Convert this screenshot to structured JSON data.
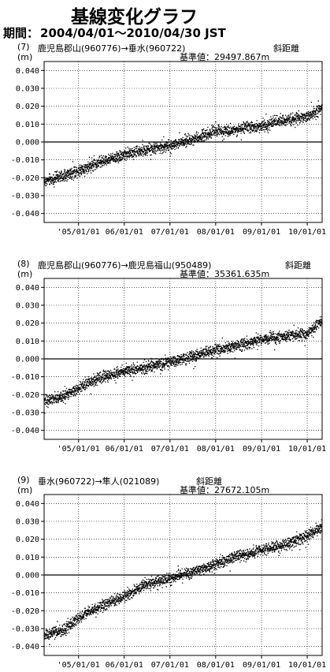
{
  "title": "基線変化グラフ",
  "period": {
    "label": "期間：",
    "range": "2004/04/01〜2010/04/30 JST"
  },
  "chart_data": [
    {
      "type": "scatter",
      "index_label": "(7)",
      "baseline_label": "鹿児島郡山(960776)→垂水(960722)",
      "component": "斜距離",
      "reference": "基準値：29497.867m",
      "ylabel": "(m)",
      "ylim": [
        -0.045,
        0.045
      ],
      "yticks": [
        "0.040",
        "0.030",
        "0.020",
        "0.010",
        "0.000",
        "-0.010",
        "-0.020",
        "-0.030",
        "-0.040"
      ],
      "xticks": [
        "'05/01/01",
        "06/01/01",
        "07/01/01",
        "08/01/01",
        "09/01/01",
        "10/01/01"
      ],
      "xlim": [
        "2004-04-01",
        "2010-04-30"
      ],
      "grid": true,
      "trend": [
        [
          "2004-04-01",
          -0.022
        ],
        [
          "2004-09-01",
          -0.019
        ],
        [
          "2005-06-01",
          -0.012
        ],
        [
          "2006-01-01",
          -0.007
        ],
        [
          "2007-01-01",
          -0.002
        ],
        [
          "2007-06-01",
          0.001
        ],
        [
          "2008-01-01",
          0.006
        ],
        [
          "2008-06-01",
          0.007
        ],
        [
          "2009-01-01",
          0.009
        ],
        [
          "2009-06-01",
          0.012
        ],
        [
          "2010-01-01",
          0.014
        ],
        [
          "2010-04-30",
          0.019
        ]
      ]
    },
    {
      "type": "scatter",
      "index_label": "(8)",
      "baseline_label": "鹿児島郡山(960776)→鹿児島福山(950489)",
      "component": "斜距離",
      "reference": "基準値：35361.635m",
      "ylabel": "(m)",
      "ylim": [
        -0.045,
        0.045
      ],
      "yticks": [
        "0.040",
        "0.030",
        "0.020",
        "0.010",
        "0.000",
        "-0.010",
        "-0.020",
        "-0.030",
        "-0.040"
      ],
      "xticks": [
        "'05/01/01",
        "06/01/01",
        "07/01/01",
        "08/01/01",
        "09/01/01",
        "10/01/01"
      ],
      "xlim": [
        "2004-04-01",
        "2010-04-30"
      ],
      "grid": true,
      "trend": [
        [
          "2004-04-01",
          -0.024
        ],
        [
          "2004-09-01",
          -0.021
        ],
        [
          "2005-06-01",
          -0.011
        ],
        [
          "2006-01-01",
          -0.007
        ],
        [
          "2007-01-01",
          -0.002
        ],
        [
          "2007-06-01",
          0.001
        ],
        [
          "2008-01-01",
          0.005
        ],
        [
          "2008-06-01",
          0.007
        ],
        [
          "2009-01-01",
          0.011
        ],
        [
          "2009-06-01",
          0.012
        ],
        [
          "2010-01-01",
          0.014
        ],
        [
          "2010-04-30",
          0.021
        ]
      ]
    },
    {
      "type": "scatter",
      "index_label": "(9)",
      "baseline_label": "垂水(960722)→隼人(021089)",
      "component": "斜距離",
      "reference": "基準値：27672.105m",
      "ylabel": "(m)",
      "ylim": [
        -0.045,
        0.045
      ],
      "yticks": [
        "0.040",
        "0.030",
        "0.020",
        "0.010",
        "0.000",
        "-0.010",
        "-0.020",
        "-0.030",
        "-0.040"
      ],
      "xticks": [
        "'05/01/01",
        "06/01/01",
        "07/01/01",
        "08/01/01",
        "09/01/01",
        "10/01/01"
      ],
      "xlim": [
        "2004-04-01",
        "2010-04-30"
      ],
      "grid": true,
      "trend": [
        [
          "2004-04-01",
          -0.034
        ],
        [
          "2004-09-01",
          -0.031
        ],
        [
          "2005-03-01",
          -0.021
        ],
        [
          "2006-01-01",
          -0.012
        ],
        [
          "2006-06-01",
          -0.006
        ],
        [
          "2007-01-01",
          -0.002
        ],
        [
          "2007-06-01",
          0.001
        ],
        [
          "2008-01-01",
          0.006
        ],
        [
          "2008-06-01",
          0.01
        ],
        [
          "2009-01-01",
          0.014
        ],
        [
          "2009-06-01",
          0.016
        ],
        [
          "2010-01-01",
          0.022
        ],
        [
          "2010-04-30",
          0.027
        ]
      ]
    }
  ]
}
